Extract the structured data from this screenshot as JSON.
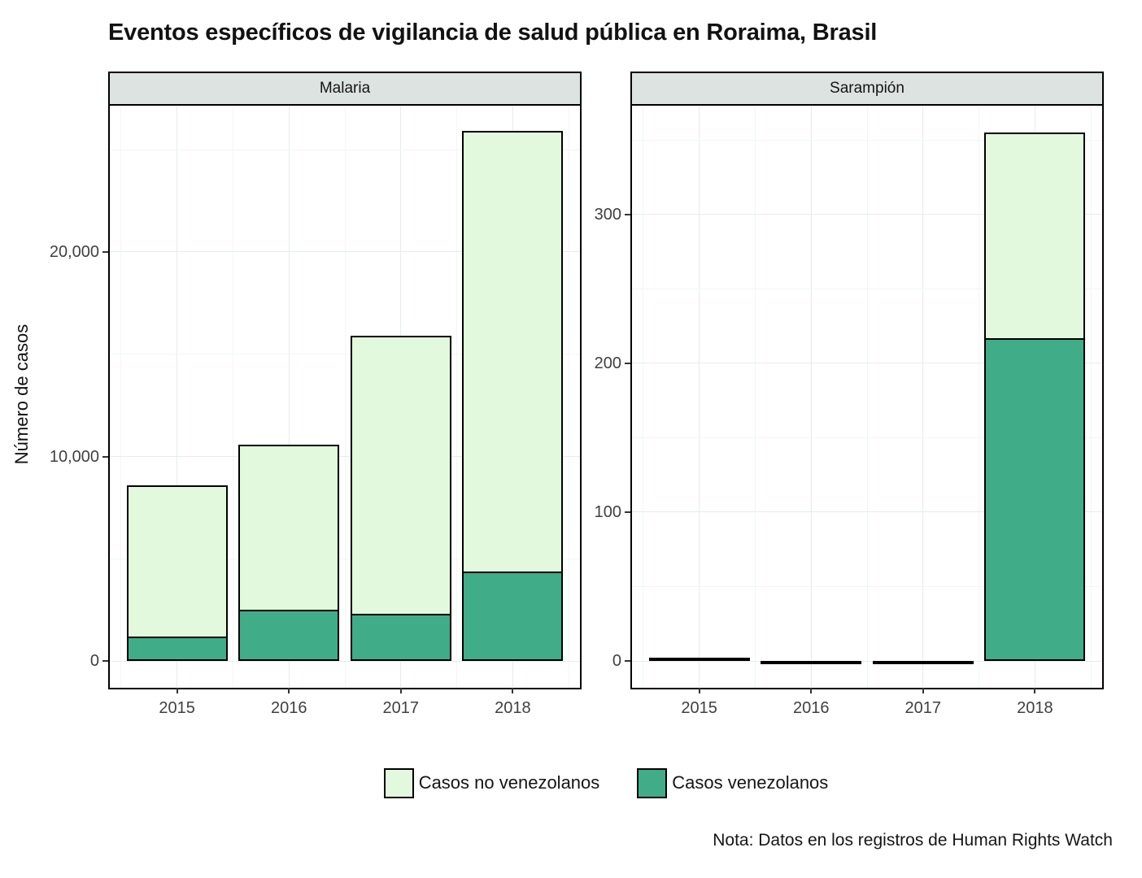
{
  "title": "Eventos específicos de vigilancia de salud pública en Roraima, Brasil",
  "y_axis_title": "Número de casos",
  "note": "Nota: Datos en los registros de Human Rights Watch",
  "legend": [
    {
      "label": "Casos no venezolanos",
      "color": "#e3f9dd"
    },
    {
      "label": "Casos venezolanos",
      "color": "#40ad88"
    }
  ],
  "chart_data": [
    {
      "type": "bar",
      "stacked": true,
      "facet": "Malaria",
      "categories": [
        "2015",
        "2016",
        "2017",
        "2018"
      ],
      "series": [
        {
          "key": "venezolanos",
          "name": "Casos venezolanos",
          "values": [
            1200,
            2500,
            2300,
            4400
          ]
        },
        {
          "key": "no_venezolanos",
          "name": "Casos no venezolanos",
          "values": [
            7400,
            8100,
            13600,
            21500
          ]
        }
      ],
      "stack_totals": [
        8600,
        10600,
        15900,
        25900
      ],
      "ylabel": "Número de casos",
      "yticks": [
        0,
        10000,
        20000
      ],
      "ytick_labels": [
        "0",
        "10,000",
        "20,000"
      ],
      "yticks_minor": [
        5000,
        15000,
        25000
      ],
      "y_display_range": [
        -1300,
        27150
      ],
      "grid": true,
      "legend_position": "bottom"
    },
    {
      "type": "bar",
      "stacked": true,
      "facet": "Sarampión",
      "categories": [
        "2015",
        "2016",
        "2017",
        "2018"
      ],
      "series": [
        {
          "key": "venezolanos",
          "name": "Casos venezolanos",
          "values": [
            0,
            0,
            0,
            217
          ]
        },
        {
          "key": "no_venezolanos",
          "name": "Casos no venezolanos",
          "values": [
            2,
            0,
            0,
            138
          ]
        }
      ],
      "stack_totals": [
        2,
        0,
        0,
        355
      ],
      "ylabel": "Número de casos",
      "yticks": [
        0,
        100,
        200,
        300
      ],
      "ytick_labels": [
        "0",
        "100",
        "200",
        "300"
      ],
      "yticks_minor": [
        50,
        150,
        250,
        350
      ],
      "y_display_range": [
        -18,
        373
      ],
      "grid": true,
      "legend_position": "bottom"
    }
  ],
  "colors": {
    "strip_background": "#dde3e0",
    "panel_border": "#000000",
    "grid_major": "#e7ebee",
    "grid_minor": "#f2f5f7",
    "axis_text": "#404040",
    "bar_light": "#e3f9dd",
    "bar_teal": "#40ad88"
  }
}
